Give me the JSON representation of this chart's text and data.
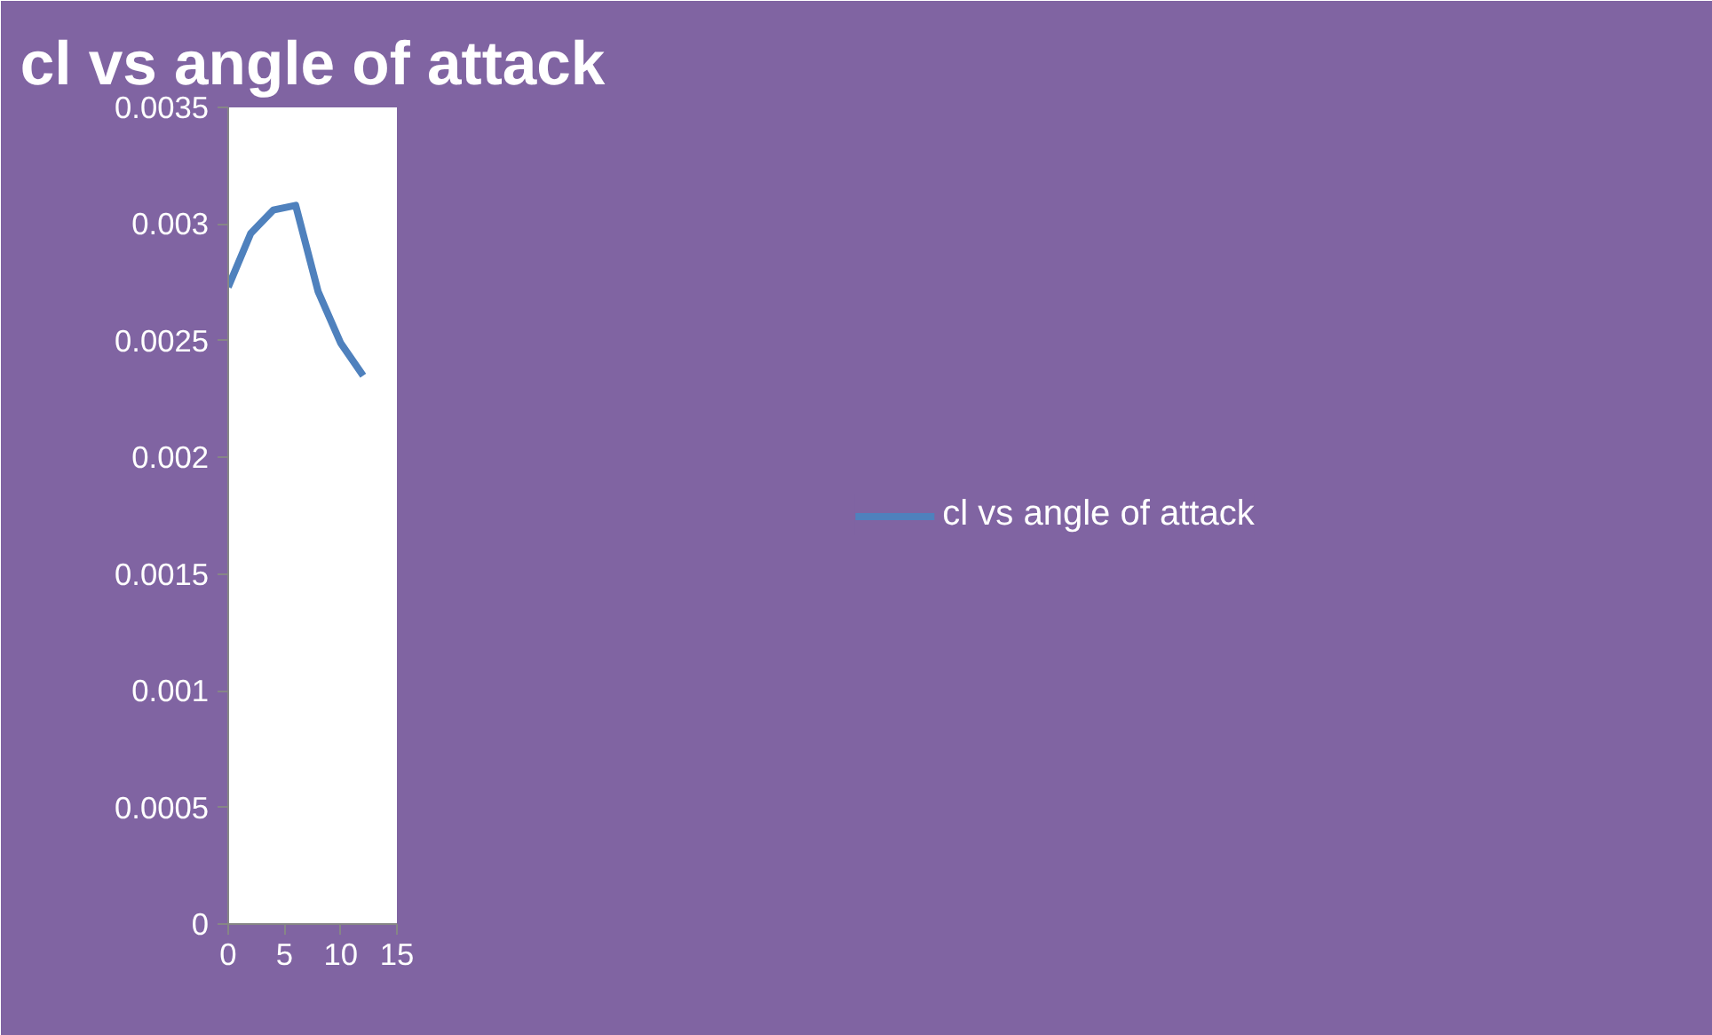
{
  "chart_data": {
    "type": "line",
    "title": "cl vs angle of attack",
    "x": [
      0,
      2,
      4,
      6,
      8,
      10,
      12
    ],
    "series": [
      {
        "name": "cl vs angle of attack",
        "color": "#4f81bd",
        "values": [
          0.00273,
          0.00296,
          0.00306,
          0.00308,
          0.00271,
          0.00249,
          0.00235
        ]
      }
    ],
    "xlim": [
      0,
      15
    ],
    "xticks": [
      0,
      5,
      10,
      15
    ],
    "ylim": [
      0,
      0.0035
    ],
    "yticks": [
      0,
      0.0005,
      0.001,
      0.0015,
      0.002,
      0.0025,
      0.003,
      0.0035
    ],
    "grid": false,
    "legend": "right",
    "marker": "none",
    "line_style": "solid"
  }
}
